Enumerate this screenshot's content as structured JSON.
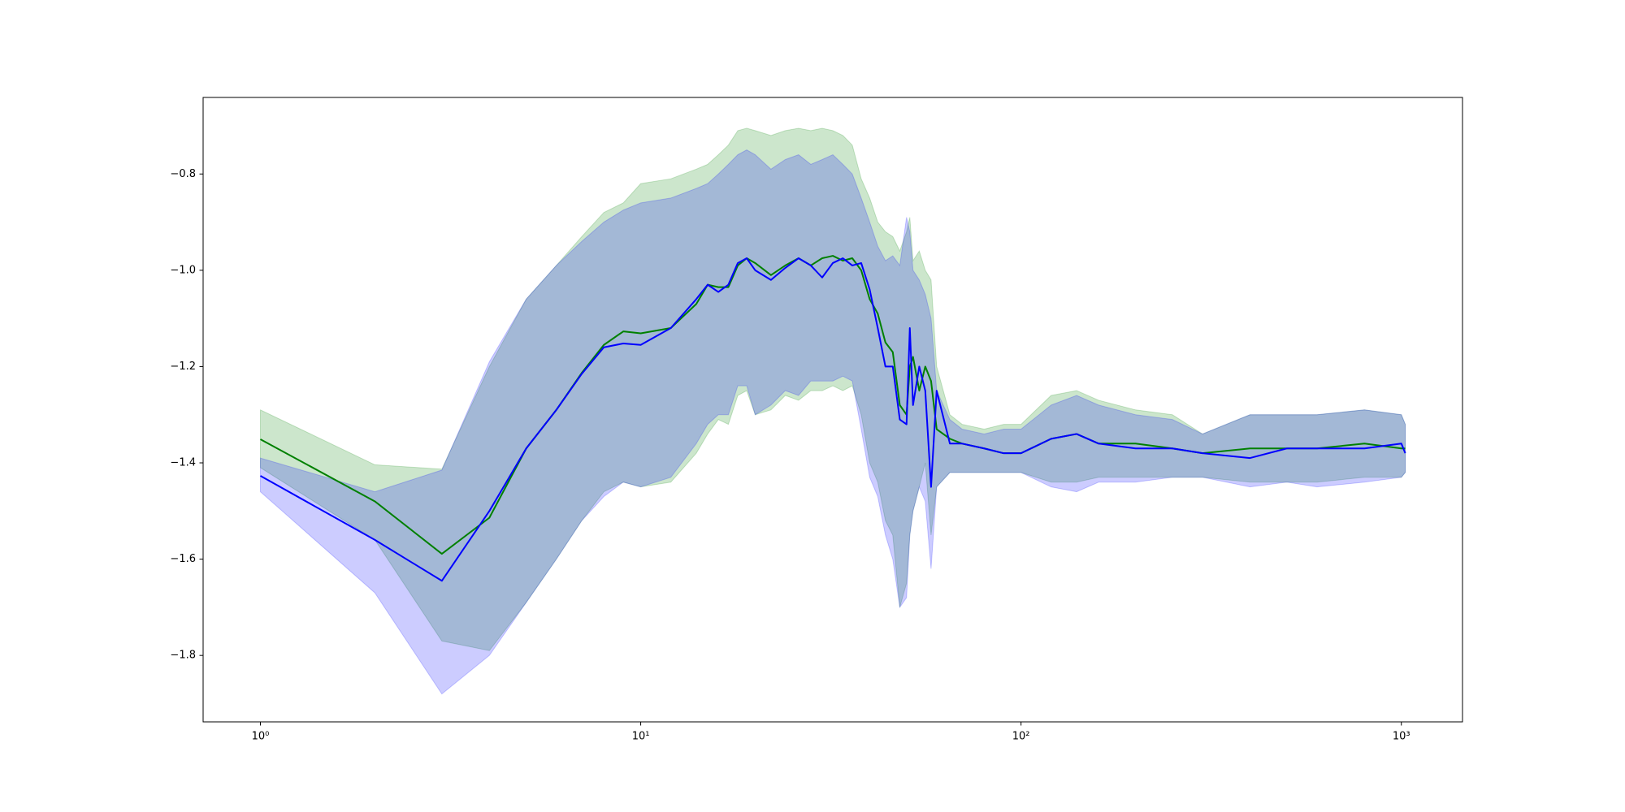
{
  "chart_data": {
    "type": "band-line",
    "x": [
      1,
      2,
      3,
      4,
      5,
      6,
      7,
      8,
      9,
      10,
      12,
      14,
      15,
      16,
      17,
      18,
      19,
      20,
      22,
      24,
      26,
      28,
      30,
      32,
      34,
      36,
      38,
      40,
      42,
      44,
      46,
      48,
      50,
      51,
      52,
      54,
      56,
      58,
      60,
      65,
      70,
      80,
      90,
      100,
      120,
      140,
      160,
      200,
      250,
      300,
      400,
      500,
      600,
      800,
      1000,
      1024
    ],
    "xscale": "log",
    "xlim": [
      0.707,
      1448
    ],
    "xticks": [
      {
        "value": 1,
        "label": "10⁰"
      },
      {
        "value": 10,
        "label": "10¹"
      },
      {
        "value": 100,
        "label": "10²"
      },
      {
        "value": 1000,
        "label": "10³"
      }
    ],
    "ylim": [
      -1.938,
      -0.641
    ],
    "yticks": [
      {
        "value": -1.8,
        "label": "−1.8"
      },
      {
        "value": -1.6,
        "label": "−1.6"
      },
      {
        "value": -1.4,
        "label": "−1.4"
      },
      {
        "value": -1.2,
        "label": "−1.2"
      },
      {
        "value": -1.0,
        "label": "−1.0"
      },
      {
        "value": -0.8,
        "label": "−0.8"
      }
    ],
    "grid": false,
    "band_opacity": 0.2,
    "series": [
      {
        "color": "#008000",
        "values": [
          -1.351,
          -1.48,
          -1.589,
          -1.514,
          -1.37,
          -1.29,
          -1.213,
          -1.155,
          -1.127,
          -1.131,
          -1.12,
          -1.07,
          -1.03,
          -1.035,
          -1.035,
          -0.99,
          -0.975,
          -0.985,
          -1.01,
          -0.99,
          -0.975,
          -0.99,
          -0.975,
          -0.97,
          -0.98,
          -0.975,
          -1.0,
          -1.06,
          -1.09,
          -1.15,
          -1.17,
          -1.28,
          -1.3,
          -1.2,
          -1.18,
          -1.25,
          -1.2,
          -1.23,
          -1.33,
          -1.35,
          -1.36,
          -1.37,
          -1.38,
          -1.38,
          -1.35,
          -1.34,
          -1.36,
          -1.36,
          -1.37,
          -1.38,
          -1.37,
          -1.37,
          -1.37,
          -1.36,
          -1.37,
          -1.37
        ],
        "upper": [
          -1.29,
          -1.404,
          -1.413,
          -1.2,
          -1.06,
          -0.99,
          -0.93,
          -0.88,
          -0.86,
          -0.82,
          -0.81,
          -0.79,
          -0.78,
          -0.76,
          -0.74,
          -0.71,
          -0.705,
          -0.71,
          -0.72,
          -0.71,
          -0.705,
          -0.71,
          -0.705,
          -0.71,
          -0.72,
          -0.74,
          -0.81,
          -0.85,
          -0.9,
          -0.92,
          -0.93,
          -0.96,
          -0.92,
          -0.89,
          -0.98,
          -0.96,
          -1.0,
          -1.02,
          -1.2,
          -1.3,
          -1.32,
          -1.33,
          -1.32,
          -1.32,
          -1.26,
          -1.25,
          -1.27,
          -1.29,
          -1.3,
          -1.34,
          -1.3,
          -1.3,
          -1.3,
          -1.29,
          -1.3,
          -1.32
        ],
        "lower": [
          -1.41,
          -1.56,
          -1.77,
          -1.79,
          -1.69,
          -1.6,
          -1.52,
          -1.46,
          -1.44,
          -1.45,
          -1.44,
          -1.38,
          -1.34,
          -1.31,
          -1.32,
          -1.26,
          -1.25,
          -1.3,
          -1.29,
          -1.26,
          -1.27,
          -1.25,
          -1.25,
          -1.24,
          -1.25,
          -1.24,
          -1.3,
          -1.4,
          -1.44,
          -1.52,
          -1.55,
          -1.7,
          -1.65,
          -1.55,
          -1.5,
          -1.45,
          -1.4,
          -1.55,
          -1.45,
          -1.42,
          -1.42,
          -1.42,
          -1.42,
          -1.42,
          -1.44,
          -1.44,
          -1.43,
          -1.43,
          -1.43,
          -1.43,
          -1.44,
          -1.44,
          -1.44,
          -1.43,
          -1.43,
          -1.42
        ]
      },
      {
        "color": "#0000ff",
        "values": [
          -1.427,
          -1.56,
          -1.645,
          -1.5,
          -1.37,
          -1.29,
          -1.215,
          -1.16,
          -1.152,
          -1.155,
          -1.12,
          -1.06,
          -1.03,
          -1.045,
          -1.03,
          -0.985,
          -0.975,
          -1.0,
          -1.02,
          -0.995,
          -0.975,
          -0.99,
          -1.015,
          -0.985,
          -0.975,
          -0.99,
          -0.985,
          -1.04,
          -1.12,
          -1.2,
          -1.2,
          -1.31,
          -1.32,
          -1.12,
          -1.28,
          -1.2,
          -1.25,
          -1.45,
          -1.25,
          -1.36,
          -1.36,
          -1.37,
          -1.38,
          -1.38,
          -1.35,
          -1.34,
          -1.36,
          -1.37,
          -1.37,
          -1.38,
          -1.39,
          -1.37,
          -1.37,
          -1.37,
          -1.36,
          -1.38
        ],
        "upper": [
          -1.39,
          -1.46,
          -1.415,
          -1.19,
          -1.06,
          -0.99,
          -0.94,
          -0.9,
          -0.875,
          -0.86,
          -0.85,
          -0.83,
          -0.82,
          -0.8,
          -0.78,
          -0.76,
          -0.75,
          -0.76,
          -0.79,
          -0.77,
          -0.76,
          -0.78,
          -0.77,
          -0.76,
          -0.78,
          -0.8,
          -0.85,
          -0.9,
          -0.95,
          -0.98,
          -0.97,
          -0.99,
          -0.89,
          -0.92,
          -1.0,
          -1.02,
          -1.05,
          -1.1,
          -1.25,
          -1.31,
          -1.33,
          -1.34,
          -1.33,
          -1.33,
          -1.28,
          -1.26,
          -1.28,
          -1.3,
          -1.31,
          -1.34,
          -1.3,
          -1.3,
          -1.3,
          -1.29,
          -1.3,
          -1.32
        ],
        "lower": [
          -1.46,
          -1.67,
          -1.88,
          -1.8,
          -1.69,
          -1.6,
          -1.52,
          -1.47,
          -1.44,
          -1.45,
          -1.43,
          -1.36,
          -1.32,
          -1.3,
          -1.3,
          -1.24,
          -1.24,
          -1.3,
          -1.28,
          -1.25,
          -1.26,
          -1.23,
          -1.23,
          -1.23,
          -1.22,
          -1.23,
          -1.33,
          -1.43,
          -1.47,
          -1.55,
          -1.6,
          -1.7,
          -1.68,
          -1.55,
          -1.5,
          -1.45,
          -1.48,
          -1.62,
          -1.45,
          -1.42,
          -1.42,
          -1.42,
          -1.42,
          -1.42,
          -1.45,
          -1.46,
          -1.44,
          -1.44,
          -1.43,
          -1.43,
          -1.45,
          -1.44,
          -1.45,
          -1.44,
          -1.43,
          -1.42
        ]
      }
    ]
  }
}
